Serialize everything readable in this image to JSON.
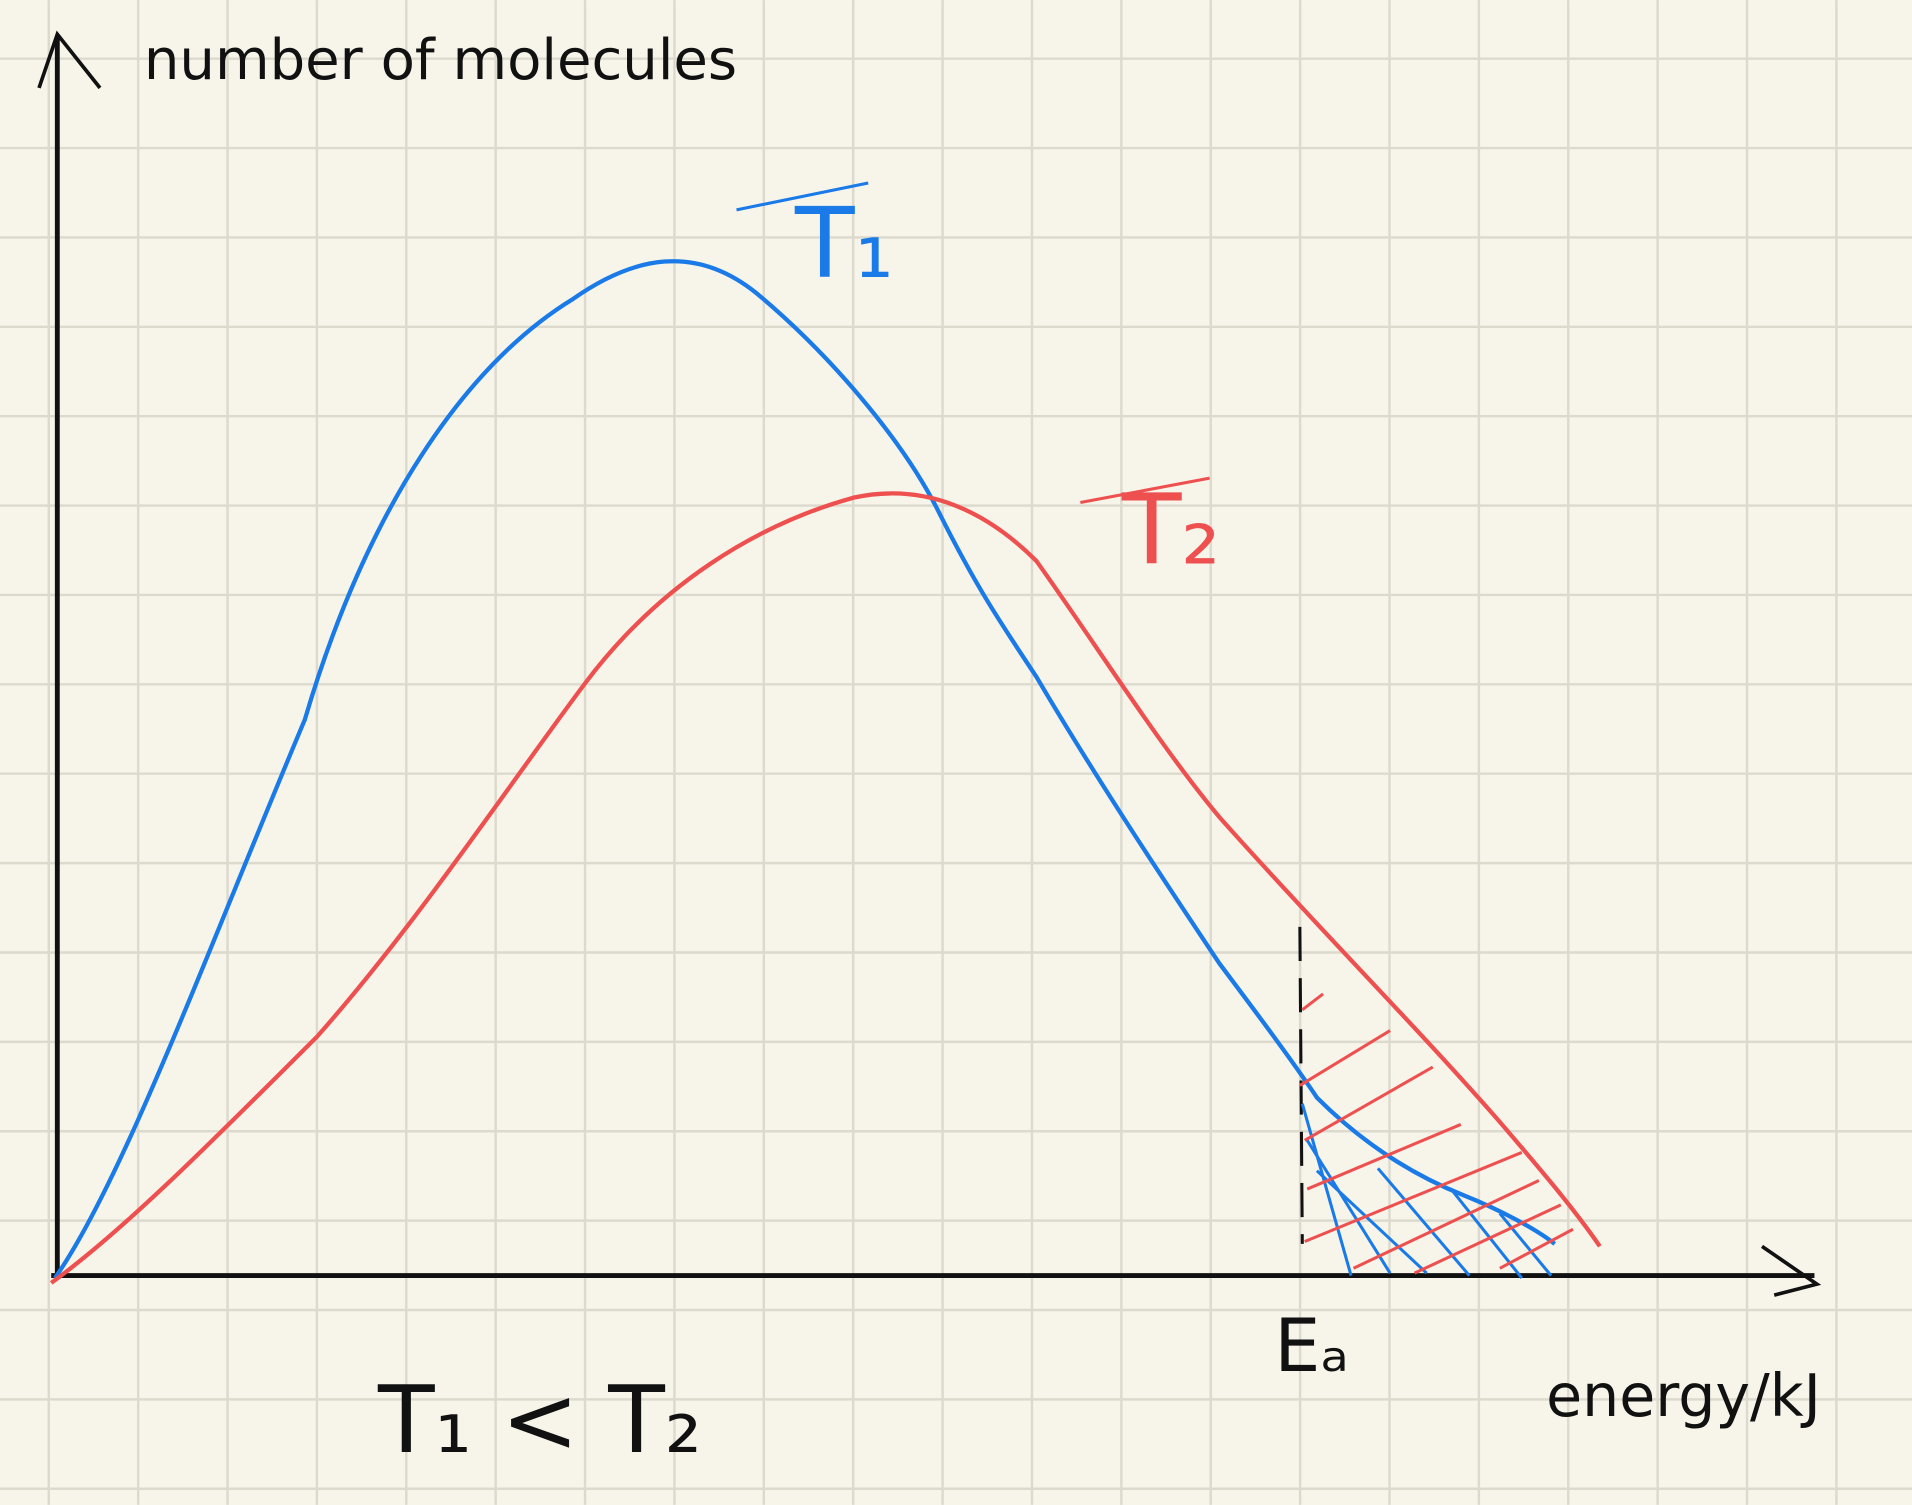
{
  "y_axis_label": "number of molecules",
  "x_axis_label": "energy/kJ",
  "curve_labels": [
    "T₁",
    "T₂"
  ],
  "activation_energy_label": "Eₐ",
  "note": "T₁ < T₂"
}
